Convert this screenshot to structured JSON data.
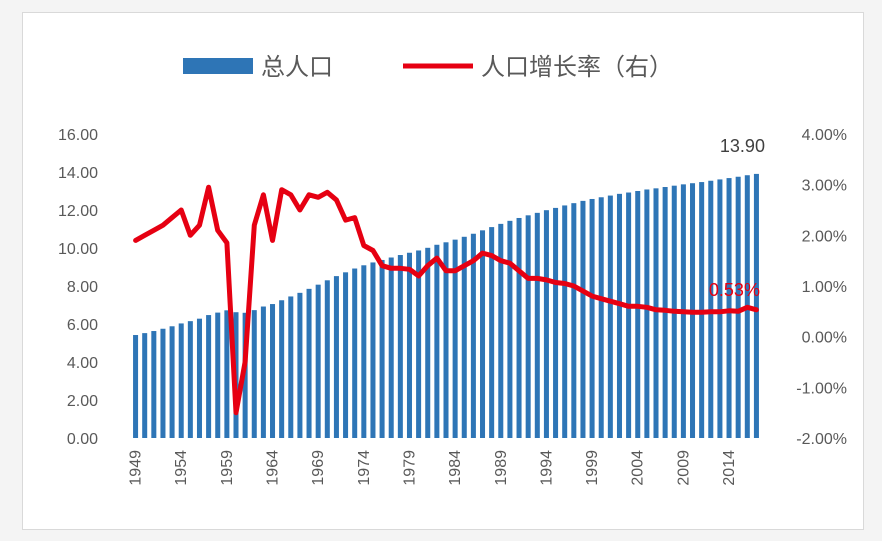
{
  "chart_data": {
    "type": "bar+line",
    "title": "",
    "xlabel": "",
    "ylabel": "",
    "x_ticks": [
      "1949",
      "1954",
      "1959",
      "1964",
      "1969",
      "1974",
      "1979",
      "1984",
      "1989",
      "1994",
      "1999",
      "2004",
      "2009",
      "2014"
    ],
    "y_left_ticks": [
      "0.00",
      "2.00",
      "4.00",
      "6.00",
      "8.00",
      "10.00",
      "12.00",
      "14.00",
      "16.00"
    ],
    "y_right_ticks": [
      "-2.00%",
      "-1.00%",
      "0.00%",
      "1.00%",
      "2.00%",
      "3.00%",
      "4.00%"
    ],
    "ylim_left": [
      0,
      16
    ],
    "ylim_right": [
      -2,
      4
    ],
    "years": [
      1949,
      1950,
      1951,
      1952,
      1953,
      1954,
      1955,
      1956,
      1957,
      1958,
      1959,
      1960,
      1961,
      1962,
      1963,
      1964,
      1965,
      1966,
      1967,
      1968,
      1969,
      1970,
      1971,
      1972,
      1973,
      1974,
      1975,
      1976,
      1977,
      1978,
      1979,
      1980,
      1981,
      1982,
      1983,
      1984,
      1985,
      1986,
      1987,
      1988,
      1989,
      1990,
      1991,
      1992,
      1993,
      1994,
      1995,
      1996,
      1997,
      1998,
      1999,
      2000,
      2001,
      2002,
      2003,
      2004,
      2005,
      2006,
      2007,
      2008,
      2009,
      2010,
      2011,
      2012,
      2013,
      2014,
      2015,
      2016,
      2017
    ],
    "series": [
      {
        "name": "总人口",
        "type": "bar",
        "axis": "left",
        "color": "#2e75b6",
        "values": [
          5.42,
          5.52,
          5.63,
          5.75,
          5.88,
          6.03,
          6.15,
          6.28,
          6.47,
          6.6,
          6.72,
          6.62,
          6.59,
          6.73,
          6.92,
          7.05,
          7.25,
          7.45,
          7.64,
          7.85,
          8.07,
          8.3,
          8.52,
          8.72,
          8.92,
          9.09,
          9.24,
          9.37,
          9.5,
          9.63,
          9.75,
          9.87,
          10.01,
          10.17,
          10.3,
          10.44,
          10.59,
          10.75,
          10.93,
          11.1,
          11.27,
          11.43,
          11.58,
          11.72,
          11.85,
          11.99,
          12.11,
          12.24,
          12.36,
          12.48,
          12.58,
          12.67,
          12.76,
          12.85,
          12.92,
          13.0,
          13.08,
          13.14,
          13.21,
          13.28,
          13.35,
          13.41,
          13.47,
          13.54,
          13.61,
          13.68,
          13.75,
          13.83,
          13.9
        ]
      },
      {
        "name": "人口增长率（右）",
        "type": "line",
        "axis": "right",
        "color": "#e60012",
        "values": [
          1.9,
          2.0,
          2.1,
          2.2,
          2.35,
          2.5,
          2.0,
          2.2,
          2.95,
          2.1,
          1.85,
          -1.5,
          -0.5,
          2.2,
          2.8,
          1.9,
          2.9,
          2.8,
          2.5,
          2.8,
          2.75,
          2.85,
          2.7,
          2.3,
          2.35,
          1.8,
          1.7,
          1.4,
          1.35,
          1.35,
          1.33,
          1.2,
          1.4,
          1.55,
          1.3,
          1.3,
          1.4,
          1.5,
          1.65,
          1.6,
          1.5,
          1.45,
          1.3,
          1.15,
          1.15,
          1.12,
          1.07,
          1.05,
          1.0,
          0.9,
          0.8,
          0.75,
          0.7,
          0.65,
          0.6,
          0.6,
          0.58,
          0.53,
          0.52,
          0.5,
          0.49,
          0.48,
          0.48,
          0.49,
          0.49,
          0.51,
          0.5,
          0.58,
          0.53
        ]
      }
    ],
    "annotations": {
      "last_bar_label": "13.90",
      "last_line_label": "0.53%"
    },
    "legend_position": "top-center",
    "grid": false
  },
  "legend": {
    "bar_label": "总人口",
    "line_label": "人口增长率（右）"
  }
}
